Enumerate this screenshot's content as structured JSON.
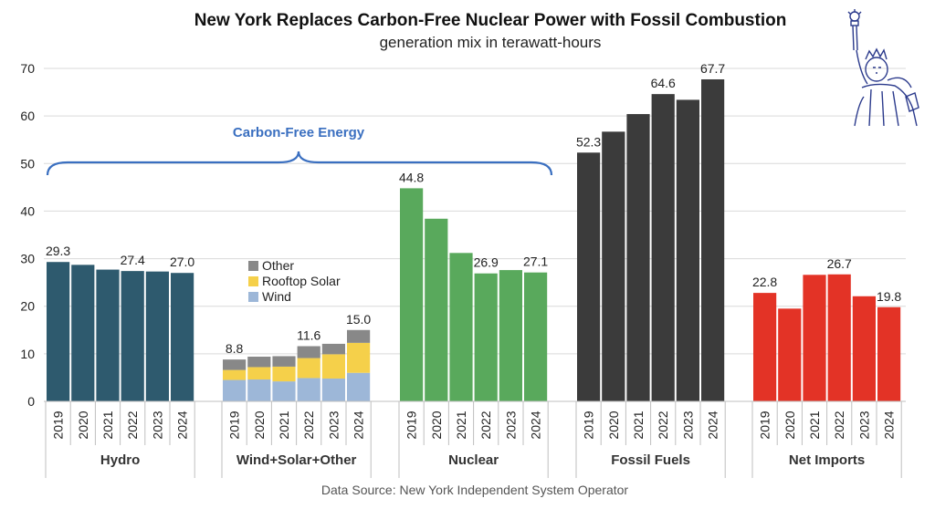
{
  "chart_data": {
    "type": "bar",
    "title": "New York Replaces Carbon-Free Nuclear Power with Fossil Combustion",
    "subtitle": "generation mix in terawatt-hours",
    "years": [
      "2019",
      "2020",
      "2021",
      "2022",
      "2023",
      "2024"
    ],
    "ylim": [
      0,
      70
    ],
    "yticks": [
      0,
      10,
      20,
      30,
      40,
      50,
      60,
      70
    ],
    "grid": true,
    "groups": [
      {
        "name": "Hydro",
        "color": "#2e5a6e",
        "values": [
          29.3,
          28.7,
          27.7,
          27.4,
          27.3,
          27.0
        ],
        "labels": [
          "29.3",
          "",
          "",
          "27.4",
          "",
          "27.0"
        ]
      },
      {
        "name": "Wind+Solar+Other",
        "stacked": true,
        "series": [
          {
            "name": "Wind",
            "color": "#9db7d8",
            "values": [
              4.5,
              4.6,
              4.2,
              4.9,
              4.8,
              6.0
            ]
          },
          {
            "name": "Rooftop Solar",
            "color": "#f5d04a",
            "values": [
              2.1,
              2.6,
              3.1,
              4.2,
              5.1,
              6.3
            ]
          },
          {
            "name": "Other",
            "color": "#888888",
            "values": [
              2.2,
              2.2,
              2.2,
              2.5,
              2.2,
              2.7
            ]
          }
        ],
        "totals": [
          8.8,
          9.4,
          9.5,
          11.6,
          12.1,
          15.0
        ],
        "labels": [
          "8.8",
          "",
          "",
          "11.6",
          "",
          "15.0"
        ]
      },
      {
        "name": "Nuclear",
        "color": "#59a95c",
        "values": [
          44.8,
          38.4,
          31.2,
          26.9,
          27.6,
          27.1
        ],
        "labels": [
          "44.8",
          "",
          "",
          "26.9",
          "",
          "27.1"
        ]
      },
      {
        "name": "Fossil Fuels",
        "color": "#3b3b3b",
        "values": [
          52.3,
          56.7,
          60.4,
          64.6,
          63.4,
          67.7
        ],
        "labels": [
          "52.3",
          "",
          "",
          "64.6",
          "",
          "67.7"
        ]
      },
      {
        "name": "Net Imports",
        "color": "#e33326",
        "values": [
          22.8,
          19.5,
          26.6,
          26.7,
          22.1,
          19.8
        ],
        "labels": [
          "22.8",
          "",
          "",
          "26.7",
          "",
          "19.8"
        ]
      }
    ],
    "legend": {
      "placement": "inside Wind+Solar+Other group",
      "entries": [
        "Other",
        "Rooftop Solar",
        "Wind"
      ]
    },
    "annotation": "Carbon-Free Energy",
    "source": "Data Source: New York Independent System Operator"
  },
  "colors": {
    "annotation": "#3a6fc0",
    "grid": "#d9d9d9",
    "logo": "#2b3a8c"
  },
  "logo_icon": "statue-of-liberty-icon"
}
